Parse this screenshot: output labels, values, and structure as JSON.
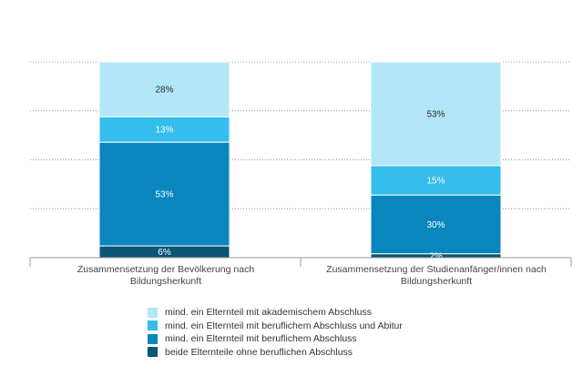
{
  "chart_data": {
    "type": "stacked-bar",
    "ylim": [
      0,
      120
    ],
    "grid": true,
    "categories": [
      "Zusammensetzung der Bevölkerung nach Bildungsherkunft",
      "Zusammensetzung der Studienanfänger/innen nach Bildungsherkunft"
    ],
    "series": [
      {
        "name": "beide Elternteile ohne beruflichen Abschluss",
        "color": "#0b5575",
        "values": [
          6,
          2
        ],
        "labels": [
          "6%",
          "2%"
        ]
      },
      {
        "name": "mind. ein Elternteil mit beruflichem Abschluss",
        "color": "#0a86bf",
        "values": [
          53,
          30
        ],
        "labels": [
          "53%",
          "30%"
        ]
      },
      {
        "name": "mind. ein Elternteil mit beruflichem Abschluss und Abitur",
        "color": "#35bdec",
        "values": [
          13,
          15
        ],
        "labels": [
          "13%",
          "15%"
        ]
      },
      {
        "name": "mind. ein Elternteil mit akademischem Abschluss",
        "color": "#b3e6f8",
        "values": [
          28,
          53
        ],
        "labels": [
          "28%",
          "53%"
        ]
      }
    ]
  }
}
